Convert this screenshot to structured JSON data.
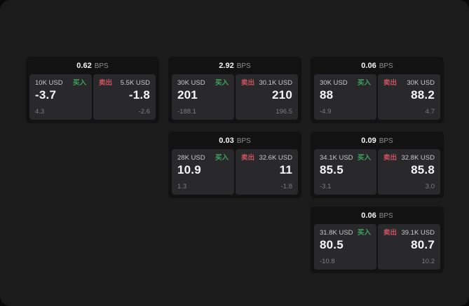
{
  "colors": {
    "background": "#09090a",
    "panel": "#1b1b1c",
    "card": "#121213",
    "tile": "#29292b",
    "green": "#3ea35c",
    "red": "#cb5261",
    "value_text": "#f6f6f6",
    "label_text": "#c9c9c9",
    "muted_text": "#7e7e80",
    "bps_unit_text": "#8f8f91"
  },
  "cards": [
    {
      "col": 0,
      "row": 0,
      "bps": "0.62",
      "unit": "BPS",
      "buy": {
        "amount": "10K USD",
        "label": "买入",
        "value": "-3.7",
        "delta": "4.3"
      },
      "sell": {
        "label": "卖出",
        "amount": "5.5K USD",
        "value": "-1.8",
        "delta": "-2.6"
      }
    },
    {
      "col": 1,
      "row": 0,
      "bps": "2.92",
      "unit": "BPS",
      "buy": {
        "amount": "30K USD",
        "label": "买入",
        "value": "201",
        "delta": "-188.1"
      },
      "sell": {
        "label": "卖出",
        "amount": "30.1K USD",
        "value": "210",
        "delta": "196.5"
      }
    },
    {
      "col": 2,
      "row": 0,
      "bps": "0.06",
      "unit": "BPS",
      "buy": {
        "amount": "30K USD",
        "label": "买入",
        "value": "88",
        "delta": "-4.9"
      },
      "sell": {
        "label": "卖出",
        "amount": "30K USD",
        "value": "88.2",
        "delta": "4.7"
      }
    },
    {
      "col": 1,
      "row": 1,
      "bps": "0.03",
      "unit": "BPS",
      "buy": {
        "amount": "28K USD",
        "label": "买入",
        "value": "10.9",
        "delta": "1.3"
      },
      "sell": {
        "label": "卖出",
        "amount": "32.6K USD",
        "value": "11",
        "delta": "-1.8"
      }
    },
    {
      "col": 2,
      "row": 1,
      "bps": "0.09",
      "unit": "BPS",
      "buy": {
        "amount": "34.1K USD",
        "label": "买入",
        "value": "85.5",
        "delta": "-3.1"
      },
      "sell": {
        "label": "卖出",
        "amount": "32.8K USD",
        "value": "85.8",
        "delta": "3.0"
      }
    },
    {
      "col": 2,
      "row": 2,
      "bps": "0.06",
      "unit": "BPS",
      "buy": {
        "amount": "31.8K USD",
        "label": "买入",
        "value": "80.5",
        "delta": "-10.8"
      },
      "sell": {
        "label": "卖出",
        "amount": "39.1K USD",
        "value": "80.7",
        "delta": "10.2"
      }
    }
  ]
}
